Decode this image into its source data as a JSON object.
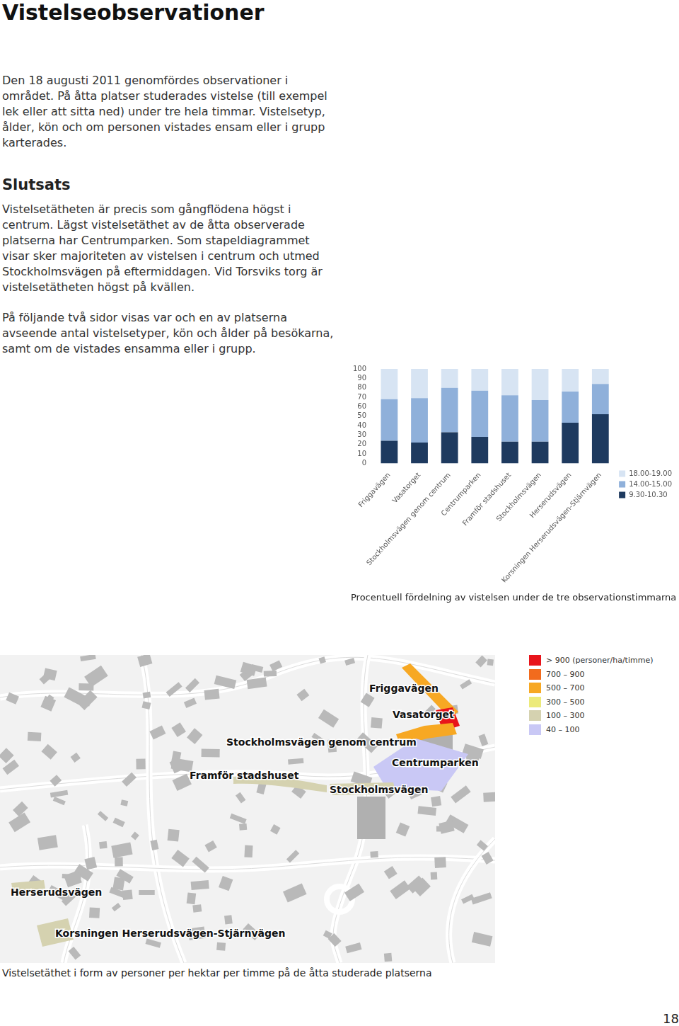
{
  "header": {
    "title": "Vistelseobservationer"
  },
  "intro": [
    "Den 18 augusti 2011 genomfördes observationer i",
    "området. På åtta platser studerades vistelse (till exempel",
    "lek eller att sitta ned) under tre hela timmar. Vistelsetyp,",
    "ålder, kön och om personen vistades ensam eller i grupp",
    "karterades."
  ],
  "conclusion": {
    "heading": "Slutsats",
    "lines": [
      "Vistelsetätheten är precis som gångflödena högst i",
      "centrum. Lägst vistelsetäthet av de åtta observerade",
      "platserna har Centrumparken. Som stapeldiagrammet",
      "visar sker majoriteten av vistelsen i centrum och utmed",
      "Stockholmsvägen på eftermiddagen. Vid Torsviks torg är",
      "vistelsetätheten högst på kvällen."
    ]
  },
  "outro": [
    "På följande två sidor visas var och en av platserna",
    "avseende antal vistelsetyper, kön och ålder på besökarna,",
    "samt om de vistades ensamma eller i grupp."
  ],
  "chart_data": {
    "type": "bar",
    "title": "Procentuell fördelning av vistelsen under de tre observationstimmarna",
    "stacked": true,
    "categories": [
      "Friggavägen",
      "Vasatorget",
      "Stockholmsvägen genom centrum",
      "Centrumparken",
      "Framför stadshuset",
      "Stockholmsvägen",
      "Herserudsvägen",
      "Korsningen Herserudsvägen-Stjärnvägen"
    ],
    "series": [
      {
        "name": "9.30-10.30",
        "color": "#1e3a5f",
        "values": [
          24,
          22,
          33,
          28,
          23,
          23,
          43,
          52
        ]
      },
      {
        "name": "14.00-15.00",
        "color": "#8fb0da",
        "values": [
          44,
          47,
          47,
          49,
          49,
          44,
          33,
          32
        ]
      },
      {
        "name": "18.00-19.00",
        "color": "#d7e4f3",
        "values": [
          32,
          31,
          20,
          23,
          28,
          33,
          24,
          16
        ]
      }
    ],
    "ylim": [
      0,
      100
    ],
    "yticks": [
      0,
      10,
      20,
      30,
      40,
      50,
      60,
      70,
      80,
      90,
      100
    ],
    "grid": false,
    "legend": "right"
  },
  "map": {
    "caption": "Vistelsetäthet i form av personer per hektar per timme på de åtta studerade platserna",
    "legend": [
      {
        "label": "> 900 (personer/ha/timme)",
        "color": "#e8141b"
      },
      {
        "label": "700 – 900",
        "color": "#f26b1d"
      },
      {
        "label": "500 – 700",
        "color": "#f7a823"
      },
      {
        "label": "300 – 500",
        "color": "#ecea7a"
      },
      {
        "label": "100 – 300",
        "color": "#d5d2b0"
      },
      {
        "label": "40 – 100",
        "color": "#c9c8f5"
      }
    ],
    "places": [
      {
        "label": "Friggavägen",
        "color": "#f7a823"
      },
      {
        "label": "Vasatorget",
        "color": "#e8141b"
      },
      {
        "label": "Stockholmsvägen genom centrum",
        "color": "#f7a823"
      },
      {
        "label": "Centrumparken",
        "color": "#c9c8f5"
      },
      {
        "label": "Framför stadshuset",
        "color": "#d5d2b0"
      },
      {
        "label": "Stockholmsvägen",
        "color": "#d5d2b0"
      },
      {
        "label": "Herserudsvägen",
        "color": "#d5d2b0"
      },
      {
        "label": "Korsningen Herserudsvägen-Stjärnvägen",
        "color": "#d5d2b0"
      }
    ]
  },
  "page_number": 18
}
